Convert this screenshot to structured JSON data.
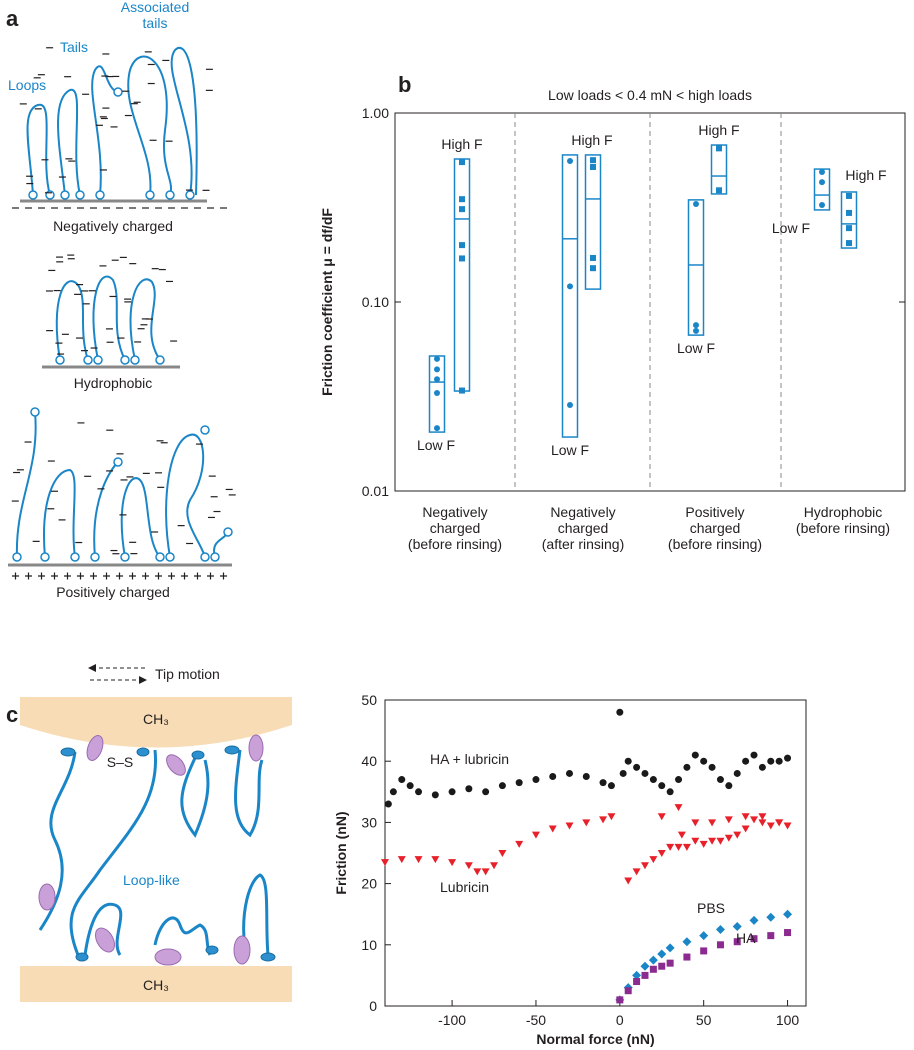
{
  "panel_a": {
    "label": "a",
    "annotations": [
      "Associated\ntails",
      "Tails",
      "Loops"
    ],
    "captions": [
      "Negatively charged",
      "Hydrophobic",
      "Positively charged"
    ]
  },
  "panel_b_label": "b",
  "panel_c": {
    "label": "c",
    "legend": "Tip motion",
    "surface_top": "CH₃",
    "bond": "S–S",
    "annotation": "Loop-like",
    "surface_bottom": "CH₃"
  },
  "chart_data": [
    {
      "type": "box",
      "title": "Low loads < 0.4 mN < high loads",
      "ylabel": "Friction coefficient μ = df/dF",
      "log_y": true,
      "ylim": [
        0.01,
        1
      ],
      "color": "#1a86c8",
      "yticks": [
        {
          "value": 0.01,
          "label": "0.01"
        },
        {
          "value": 0.1,
          "label": "0.10"
        },
        {
          "value": 1,
          "label": "1.00"
        }
      ],
      "categories": [
        "Negatively\ncharged\n(before rinsing)",
        "Negatively\ncharged\n(after rinsing)",
        "Positively\ncharged\n(before rinsing)",
        "Hydrophobic\n(before rinsing)"
      ],
      "groups": [
        {
          "boxes": [
            {
              "label": "Low F",
              "min": 0.0205,
              "max": 0.0518,
              "mean": 0.0377,
              "points": [
                0.05,
                0.044,
                0.039,
                0.033,
                0.0215
              ]
            },
            {
              "label": "High F",
              "min": 0.0338,
              "max": 0.571,
              "mean": 0.275,
              "points": [
                0.55,
                0.35,
                0.31,
                0.2,
                0.17,
                0.034
              ]
            }
          ]
        },
        {
          "boxes": [
            {
              "label": "Low F",
              "min": 0.0193,
              "max": 0.6,
              "mean": 0.216,
              "points": [
                0.557,
                0.121,
                0.0285
              ]
            },
            {
              "label": "High F",
              "min": 0.117,
              "max": 0.6,
              "mean": 0.351,
              "points": [
                0.563,
                0.518,
                0.171,
                0.151
              ]
            }
          ]
        },
        {
          "boxes": [
            {
              "label": "Low F",
              "min": 0.0668,
              "max": 0.347,
              "mean": 0.157,
              "points": [
                0.33,
                0.0754,
                0.0703
              ]
            },
            {
              "label": "High F",
              "min": 0.373,
              "max": 0.677,
              "mean": 0.464,
              "points": [
                0.65,
                0.39
              ]
            }
          ]
        },
        {
          "boxes": [
            {
              "label": "Low F",
              "min": 0.307,
              "max": 0.505,
              "mean": 0.368,
              "points": [
                0.487,
                0.431,
                0.326
              ]
            },
            {
              "label": "High F",
              "min": 0.193,
              "max": 0.382,
              "mean": 0.259,
              "points": [
                0.364,
                0.296,
                0.246,
                0.205
              ]
            }
          ]
        }
      ]
    },
    {
      "type": "scatter",
      "xlabel": "Normal force (nN)",
      "ylabel": "Friction (nN)",
      "xlim": [
        -140,
        111
      ],
      "xticks": [
        -100,
        -50,
        0,
        50,
        100
      ],
      "ylim": [
        0,
        50
      ],
      "yticks": [
        0,
        10,
        20,
        30,
        40,
        50
      ],
      "series": [
        {
          "name": "HA + lubricin",
          "color": "#1a1a1a",
          "marker": "circle",
          "x": [
            -138,
            -135,
            -130,
            -125,
            -120,
            -110,
            -100,
            -90,
            -80,
            -70,
            -60,
            -50,
            -40,
            -30,
            -20,
            -10,
            -5,
            0,
            2,
            5,
            10,
            15,
            20,
            25,
            30,
            35,
            40,
            45,
            50,
            55,
            60,
            65,
            70,
            75,
            80,
            85,
            90,
            95,
            100
          ],
          "y": [
            33,
            35,
            37,
            36,
            35,
            34.5,
            35,
            35.5,
            35,
            36,
            36.5,
            37,
            37.5,
            38,
            37.5,
            36.5,
            36,
            48,
            38,
            40,
            39,
            38,
            37,
            36,
            35,
            37,
            39,
            41,
            40,
            39,
            37,
            36,
            38,
            40,
            41,
            39,
            40,
            40,
            40.5
          ]
        },
        {
          "name": "Lubricin",
          "color": "#e8202a",
          "marker": "triangle",
          "x": [
            -140,
            -130,
            -120,
            -110,
            -100,
            -90,
            -85,
            -80,
            -75,
            -70,
            -60,
            -50,
            -40,
            -30,
            -20,
            -10,
            -5,
            5,
            10,
            15,
            20,
            25,
            30,
            35,
            40,
            45,
            50,
            55,
            60,
            65,
            70,
            75,
            80,
            85,
            90,
            95,
            100,
            25,
            35,
            45,
            55,
            65,
            75,
            85,
            95,
            37
          ],
          "y": [
            23.5,
            24,
            24,
            24,
            23.5,
            23,
            22,
            22,
            23,
            25,
            26.5,
            28,
            29,
            29.5,
            30,
            30.5,
            31,
            20.5,
            22,
            23,
            24,
            25,
            26,
            26,
            26,
            27,
            26.5,
            27,
            27,
            27.5,
            28,
            29,
            30.5,
            30,
            29.5,
            30,
            29.5,
            31,
            32.5,
            30,
            30,
            30.5,
            31,
            31,
            30,
            28
          ]
        },
        {
          "name": "PBS",
          "color": "#1a86c8",
          "marker": "diamond",
          "x": [
            0,
            5,
            10,
            15,
            20,
            25,
            30,
            40,
            50,
            60,
            70,
            80,
            90,
            100
          ],
          "y": [
            1,
            3,
            5,
            6.5,
            7.5,
            8.5,
            9.5,
            10.5,
            11.5,
            12.5,
            13,
            14,
            14.5,
            15
          ]
        },
        {
          "name": "HA",
          "color": "#8b2a8f",
          "marker": "square",
          "x": [
            0,
            5,
            10,
            15,
            20,
            25,
            30,
            40,
            50,
            60,
            70,
            80,
            90,
            100
          ],
          "y": [
            1,
            2.5,
            4,
            5,
            6,
            6.5,
            7,
            8,
            9,
            10,
            10.5,
            11,
            11.5,
            12
          ]
        }
      ]
    }
  ]
}
